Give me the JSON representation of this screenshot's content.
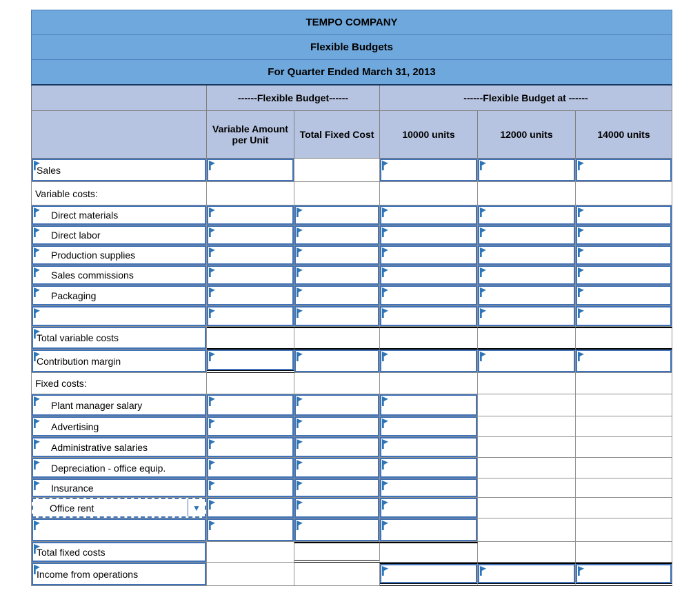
{
  "colors": {
    "title_band_bg": "#6FA8DC",
    "header_band_bg": "#B7C4E1",
    "input_border_blue": "#4173B8",
    "input_marker_blue": "#2E75B6",
    "grid_line_gray": "#8F8F8F",
    "total_rule_black": "#000000"
  },
  "icons": {
    "input_marker": "flag-triangle-icon",
    "dropdown_arrow_glyph": "▼"
  },
  "table": {
    "titles": [
      "TEMPO COMPANY",
      "Flexible Budgets",
      "For Quarter Ended March 31, 2013"
    ],
    "group_headers": [
      {
        "label": "------Flexible Budget------"
      },
      {
        "label": "------Flexible Budget at ------"
      }
    ],
    "column_headers": [
      "Variable Amount per Unit",
      "Total Fixed Cost",
      "10000 units",
      "12000 units",
      "14000 units"
    ],
    "rows": [
      {
        "id": "sales",
        "label": "Sales",
        "label_type": "input",
        "indent": false,
        "cells": [
          "input",
          "plain",
          "input",
          "input",
          "input"
        ]
      },
      {
        "id": "variable-costs-header",
        "label": "Variable costs:",
        "label_type": "plain",
        "indent": false,
        "cells": [
          "plain",
          "plain",
          "plain",
          "plain",
          "plain"
        ]
      },
      {
        "id": "direct-materials",
        "label": "Direct materials",
        "label_type": "input",
        "indent": true,
        "cells": [
          "input",
          "input",
          "input",
          "input",
          "input"
        ]
      },
      {
        "id": "direct-labor",
        "label": "Direct labor",
        "label_type": "input",
        "indent": true,
        "cells": [
          "input",
          "input",
          "input",
          "input",
          "input"
        ]
      },
      {
        "id": "production-supplies",
        "label": "Production supplies",
        "label_type": "input",
        "indent": true,
        "cells": [
          "input",
          "input",
          "input",
          "input",
          "input"
        ]
      },
      {
        "id": "sales-commissions",
        "label": "Sales commissions",
        "label_type": "input",
        "indent": true,
        "cells": [
          "input",
          "input",
          "input",
          "input",
          "input"
        ]
      },
      {
        "id": "packaging",
        "label": "Packaging",
        "label_type": "input",
        "indent": true,
        "cells": [
          "input",
          "input",
          "input",
          "input",
          "input"
        ]
      },
      {
        "id": "blank-variable",
        "label": "",
        "label_type": "input",
        "indent": false,
        "cells": [
          "input",
          "input",
          "input",
          "input",
          "input"
        ]
      },
      {
        "id": "total-variable-costs",
        "label": "Total variable costs",
        "label_type": "input",
        "indent": false,
        "cells": [
          "plain btop bbot",
          "plain btop bbot",
          "plain btop bbot",
          "plain btop bbot",
          "plain btop bbot"
        ]
      },
      {
        "id": "contribution-margin",
        "label": "Contribution margin",
        "label_type": "input",
        "indent": false,
        "cells": [
          "input dblb",
          "input",
          "input",
          "input",
          "input"
        ]
      },
      {
        "id": "fixed-costs-header",
        "label": "Fixed costs:",
        "label_type": "plain",
        "indent": false,
        "cells": [
          "plain",
          "plain",
          "plain",
          "plain",
          "plain"
        ]
      },
      {
        "id": "plant-manager-salary",
        "label": "Plant manager salary",
        "label_type": "input",
        "indent": true,
        "cells": [
          "input",
          "input",
          "input",
          "plain",
          "plain"
        ]
      },
      {
        "id": "advertising",
        "label": "Advertising",
        "label_type": "input",
        "indent": true,
        "cells": [
          "input",
          "input",
          "input",
          "plain",
          "plain"
        ]
      },
      {
        "id": "administrative-salaries",
        "label": "Administrative salaries",
        "label_type": "input",
        "indent": true,
        "cells": [
          "input",
          "input",
          "input",
          "plain",
          "plain"
        ]
      },
      {
        "id": "depreciation-office-equip",
        "label": "Depreciation - office equip.",
        "label_type": "input",
        "indent": true,
        "cells": [
          "input",
          "input",
          "input",
          "plain",
          "plain"
        ]
      },
      {
        "id": "insurance",
        "label": "Insurance",
        "label_type": "input",
        "indent": true,
        "cells": [
          "input",
          "input",
          "input",
          "plain",
          "plain"
        ]
      },
      {
        "id": "office-rent",
        "label": "Office rent",
        "label_type": "dropdown",
        "indent": true,
        "cells": [
          "input",
          "input",
          "input",
          "plain",
          "plain"
        ]
      },
      {
        "id": "blank-fixed",
        "label": "",
        "label_type": "input",
        "indent": false,
        "cells": [
          "input",
          "input",
          "input",
          "plain",
          "plain"
        ]
      },
      {
        "id": "total-fixed-costs",
        "label": "Total fixed costs",
        "label_type": "input",
        "indent": false,
        "cells": [
          "plain",
          "plain btop dblb",
          "plain btop",
          "plain",
          "plain"
        ]
      },
      {
        "id": "income-from-operations",
        "label": "Income from operations",
        "label_type": "input",
        "indent": false,
        "cells": [
          "plain",
          "plain",
          "input btop dblb",
          "input btop dblb",
          "input btop dblb"
        ]
      }
    ]
  }
}
